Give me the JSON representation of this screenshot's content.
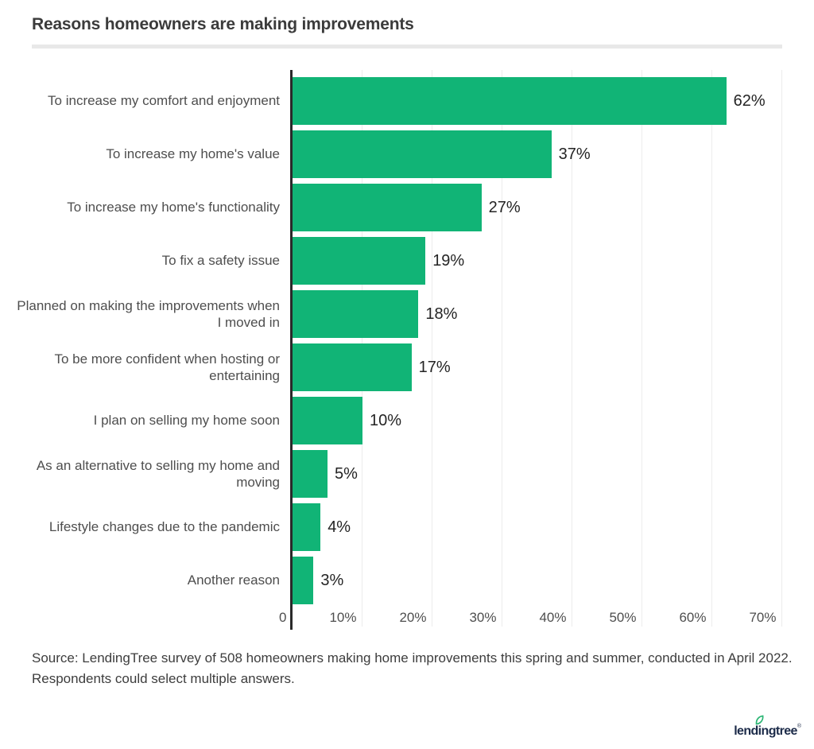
{
  "header": {
    "title": "Reasons homeowners are making improvements"
  },
  "chart_data": {
    "type": "bar",
    "orientation": "horizontal",
    "title": "Reasons homeowners are making improvements",
    "categories": [
      "To increase my comfort and enjoyment",
      "To increase my home's value",
      "To increase my home's functionality",
      "To fix a safety issue",
      "Planned on making the improvements when I moved in",
      "To be more confident when hosting or entertaining",
      "I plan on selling my home soon",
      "As an alternative to selling my home and moving",
      "Lifestyle changes due to the pandemic",
      "Another reason"
    ],
    "values": [
      62,
      37,
      27,
      19,
      18,
      17,
      10,
      5,
      4,
      3
    ],
    "value_labels": [
      "62%",
      "37%",
      "27%",
      "19%",
      "18%",
      "17%",
      "10%",
      "5%",
      "4%",
      "3%"
    ],
    "x_ticks": [
      {
        "value": 0,
        "label": "0"
      },
      {
        "value": 10,
        "label": "10%"
      },
      {
        "value": 20,
        "label": "20%"
      },
      {
        "value": 30,
        "label": "30%"
      },
      {
        "value": 40,
        "label": "40%"
      },
      {
        "value": 50,
        "label": "50%"
      },
      {
        "value": 60,
        "label": "60%"
      },
      {
        "value": 70,
        "label": "70%"
      }
    ],
    "xlim": [
      0,
      70
    ],
    "grid": true,
    "legend_position": "none",
    "bar_color": "#11B476",
    "axis_color": "#2A2A2A",
    "gridline_color": "#ECECEC"
  },
  "source": {
    "line1": "Source: LendingTree survey of 508 homeowners making home improvements this spring and summer, conducted in April 2022.",
    "line2": "Respondents could select multiple answers."
  },
  "footer": {
    "logo_text": "lendingtree",
    "logo_registered": "®",
    "logo_color": "#1C2B49",
    "leaf_color": "#2AB573"
  }
}
